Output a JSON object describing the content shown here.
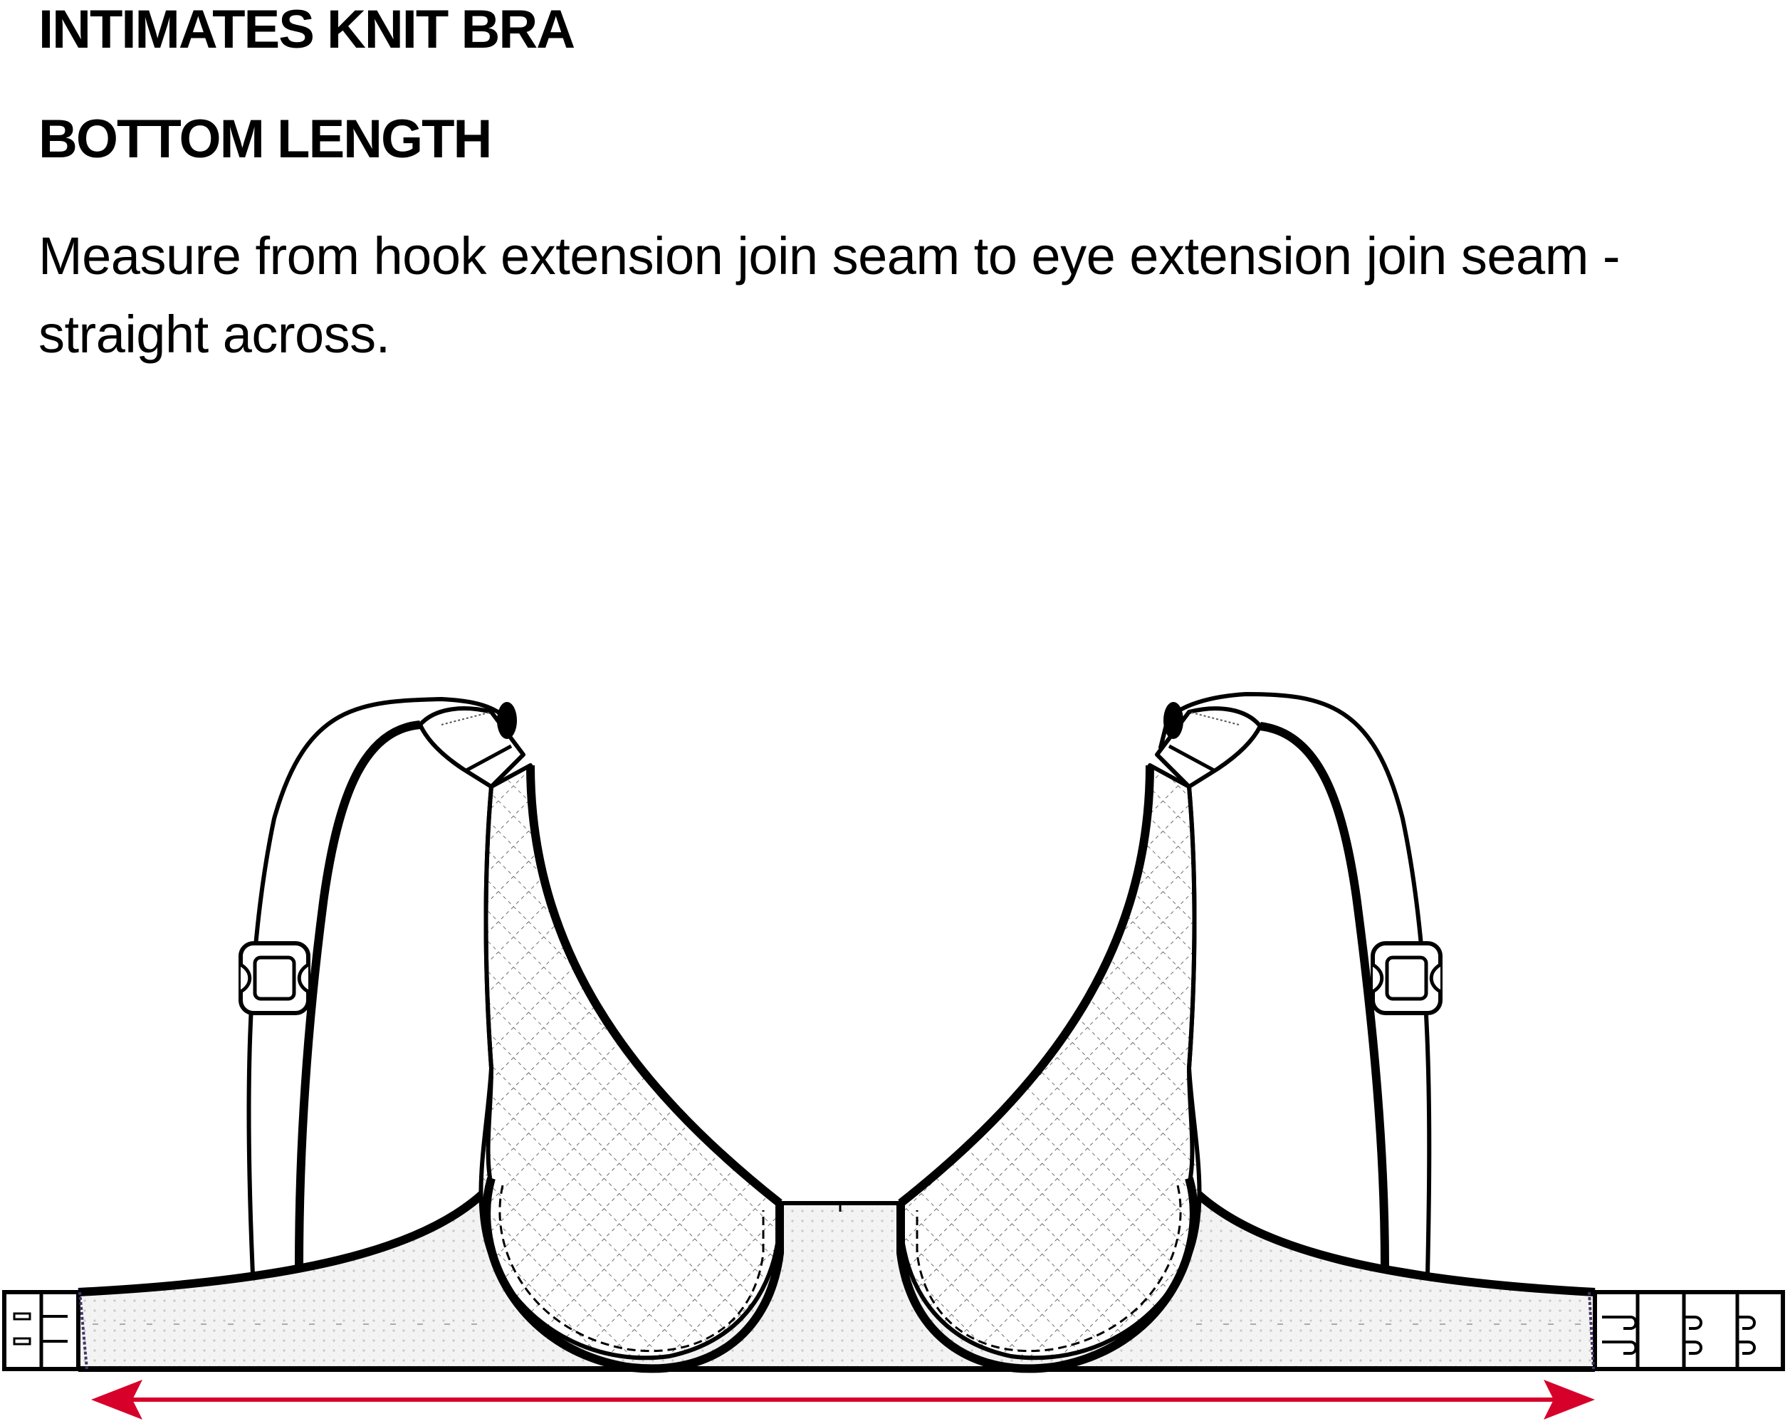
{
  "header": {
    "title": "INTIMATES KNIT BRA",
    "subtitle": "BOTTOM LENGTH",
    "instructions": "Measure from hook extension join seam to eye extension join seam - straight across."
  },
  "diagram": {
    "subject": "bra-flat-sketch",
    "measurement": "bottom-length",
    "arrow_color": "#d7002a",
    "line_color": "#000000",
    "band_fill": "#f2f2f2",
    "cup_fill": "#ffffff"
  }
}
